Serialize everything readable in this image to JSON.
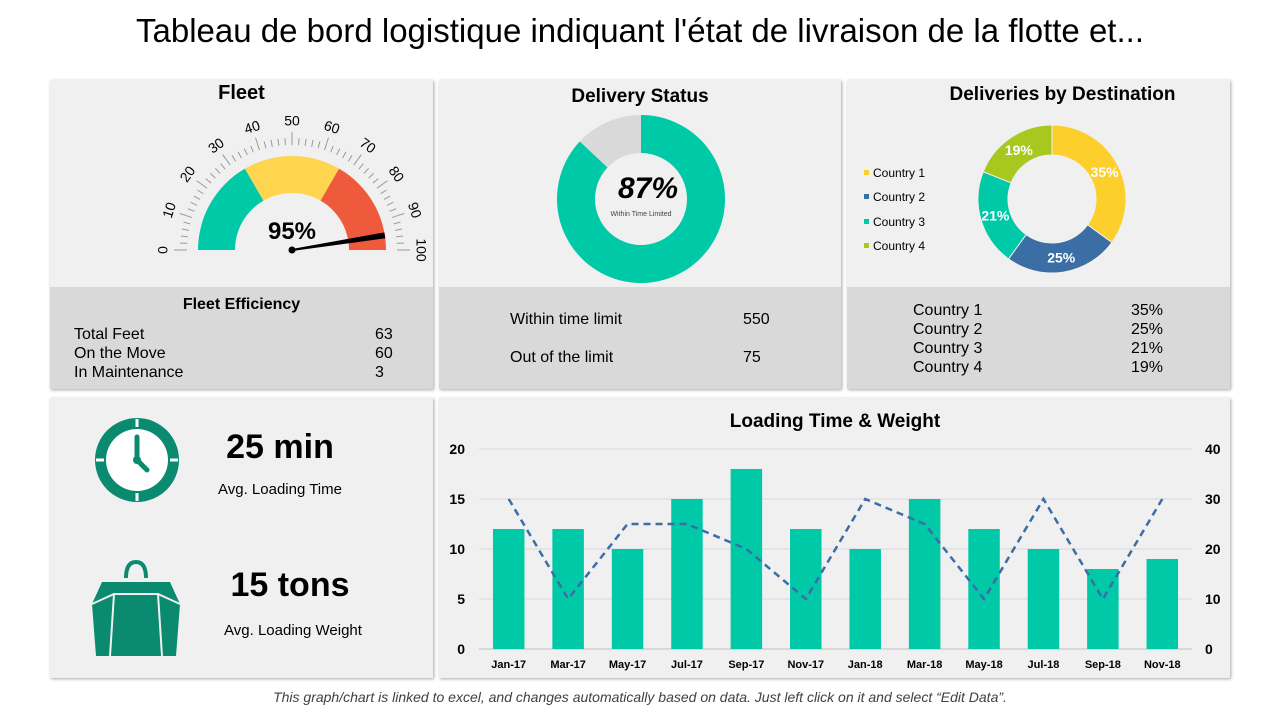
{
  "title": "Tableau de bord logistique indiquant l'état de livraison de la flotte et...",
  "footer": "This graph/chart is linked to excel, and changes automatically based on data. Just left click on it and select “Edit Data”.",
  "colors": {
    "teal": "#00c9a7",
    "yellow": "#ffd54f",
    "red": "#f05a3c",
    "grey": "#d9d9d9",
    "blue": "#3a6ea5",
    "lime": "#a8c820",
    "yellow2": "#fccf2d",
    "dark_green": "#0a8a6e",
    "line": "#3a6ea5"
  },
  "fleet": {
    "title": "Fleet",
    "gauge_value": 95,
    "gauge_label": "95%",
    "ticks": [
      "0",
      "10",
      "20",
      "30",
      "40",
      "50",
      "60",
      "70",
      "80",
      "90",
      "100"
    ],
    "efficiency_title": "Fleet Efficiency",
    "rows": [
      {
        "label": "Total Feet",
        "value": "63"
      },
      {
        "label": "On the Move",
        "value": "60"
      },
      {
        "label": "In Maintenance",
        "value": "3"
      }
    ]
  },
  "delivery_status": {
    "title": "Delivery Status",
    "percent": 87,
    "center_label": "87%",
    "center_sub": "Within Time Limited",
    "rows": [
      {
        "label": "Within time limit",
        "value": "550"
      },
      {
        "label": "Out of the limit",
        "value": "75"
      }
    ]
  },
  "destinations": {
    "title": "Deliveries by Destination",
    "legend": [
      "Country 1",
      "Country 2",
      "Country 3",
      "Country 4"
    ],
    "rows": [
      {
        "label": "Country 1",
        "value": "35%"
      },
      {
        "label": "Country 2",
        "value": "25%"
      },
      {
        "label": "Country 3",
        "value": "21%"
      },
      {
        "label": "Country 4",
        "value": "19%"
      }
    ]
  },
  "kpis": {
    "loading_time": {
      "value": "25 min",
      "label": "Avg. Loading Time",
      "icon": "clock-icon"
    },
    "loading_weight": {
      "value": "15 tons",
      "label": "Avg. Loading Weight",
      "icon": "weight-bag-icon"
    }
  },
  "chart_data": [
    {
      "type": "bar",
      "title": "Loading Time & Weight",
      "categories": [
        "Jan-17",
        "Mar-17",
        "May-17",
        "Jul-17",
        "Sep-17",
        "Nov-17",
        "Jan-18",
        "Mar-18",
        "May-18",
        "Jul-18",
        "Sep-18",
        "Nov-18"
      ],
      "series": [
        {
          "type": "bar",
          "axis": "left",
          "values": [
            12,
            12,
            10,
            15,
            18,
            12,
            10,
            15,
            12,
            10,
            8,
            9
          ]
        },
        {
          "type": "line",
          "axis": "right",
          "style": "dashed",
          "values": [
            30,
            10,
            25,
            25,
            20,
            10,
            30,
            25,
            10,
            30,
            10,
            30
          ]
        }
      ],
      "ylim_left": [
        0,
        20
      ],
      "yticks_left": [
        "0",
        "5",
        "10",
        "15",
        "20"
      ],
      "ylim_right": [
        0,
        40
      ],
      "yticks_right": [
        "0",
        "10",
        "20",
        "30",
        "40"
      ],
      "grid": true
    },
    {
      "type": "pie",
      "donut": true,
      "categories": [
        "Country 1",
        "Country 2",
        "Country 3",
        "Country 4"
      ],
      "values": [
        35,
        25,
        21,
        19
      ],
      "labels": [
        "35%",
        "25%",
        "21%",
        "19%"
      ],
      "legend": "left"
    },
    {
      "type": "pie",
      "donut": true,
      "categories": [
        "Within time limit",
        "Out of the limit"
      ],
      "values": [
        87,
        13
      ]
    }
  ]
}
